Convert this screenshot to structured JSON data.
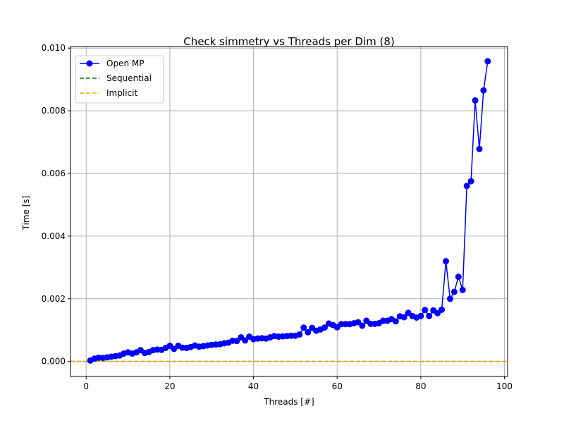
{
  "chart_data": {
    "type": "line",
    "title": "Check simmetry vs Threads per Dim (8)",
    "xlabel": "Threads [#]",
    "ylabel": "Time [s]",
    "xlim": [
      -3.75,
      100.75
    ],
    "ylim": [
      -0.00048,
      0.01005
    ],
    "xticks": [
      0,
      20,
      40,
      60,
      80,
      100
    ],
    "xtick_labels": [
      "0",
      "20",
      "40",
      "60",
      "80",
      "100"
    ],
    "yticks": [
      0,
      0.002,
      0.004,
      0.006,
      0.008,
      0.01
    ],
    "ytick_labels": [
      "0.000",
      "0.002",
      "0.004",
      "0.006",
      "0.008",
      "0.010"
    ],
    "grid": true,
    "legend_position": "top-left",
    "series": [
      {
        "name": "Open MP",
        "style": "line-marker",
        "color": "#0000ff",
        "x": [
          1,
          2,
          3,
          4,
          5,
          6,
          7,
          8,
          9,
          10,
          11,
          12,
          13,
          14,
          15,
          16,
          17,
          18,
          19,
          20,
          21,
          22,
          23,
          24,
          25,
          26,
          27,
          28,
          29,
          30,
          31,
          32,
          33,
          34,
          35,
          36,
          37,
          38,
          39,
          40,
          41,
          42,
          43,
          44,
          45,
          46,
          47,
          48,
          49,
          50,
          51,
          52,
          53,
          54,
          55,
          56,
          57,
          58,
          59,
          60,
          61,
          62,
          63,
          64,
          65,
          66,
          67,
          68,
          69,
          70,
          71,
          72,
          73,
          74,
          75,
          76,
          77,
          78,
          79,
          80,
          81,
          82,
          83,
          84,
          85,
          86,
          87,
          88,
          89,
          90,
          91,
          92,
          93,
          94,
          95,
          96
        ],
        "y": [
          3e-05,
          9e-05,
          0.00012,
          0.00011,
          0.00013,
          0.00015,
          0.00017,
          0.00019,
          0.00025,
          0.00029,
          0.00025,
          0.00029,
          0.00036,
          0.00027,
          0.0003,
          0.00036,
          0.00038,
          0.00037,
          0.00043,
          0.0005,
          0.0004,
          0.0005,
          0.00044,
          0.00043,
          0.00046,
          0.00051,
          0.00047,
          0.00049,
          0.00051,
          0.00053,
          0.00054,
          0.00055,
          0.00058,
          0.0006,
          0.00066,
          0.00065,
          0.00077,
          0.00067,
          0.00079,
          0.00071,
          0.00073,
          0.00074,
          0.00073,
          0.00077,
          0.00081,
          0.00079,
          0.0008,
          0.00081,
          0.00082,
          0.00082,
          0.00086,
          0.00108,
          0.00093,
          0.00107,
          0.00098,
          0.00102,
          0.00108,
          0.00121,
          0.00116,
          0.00109,
          0.00119,
          0.00119,
          0.00119,
          0.00122,
          0.00125,
          0.00114,
          0.0013,
          0.0012,
          0.0012,
          0.00122,
          0.0013,
          0.0013,
          0.00135,
          0.00128,
          0.00144,
          0.00141,
          0.00155,
          0.00145,
          0.0014,
          0.00145,
          0.00164,
          0.00145,
          0.00163,
          0.00154,
          0.00165,
          0.0032,
          0.002,
          0.00222,
          0.0027,
          0.00228,
          0.0056,
          0.00575,
          0.00833,
          0.00678,
          0.00865,
          0.00958
        ]
      },
      {
        "name": "Sequential",
        "style": "dashed",
        "color": "#008000",
        "y": 2e-06
      },
      {
        "name": "Implicit",
        "style": "dashed",
        "color": "#ffa500",
        "y": 4e-06
      }
    ]
  }
}
